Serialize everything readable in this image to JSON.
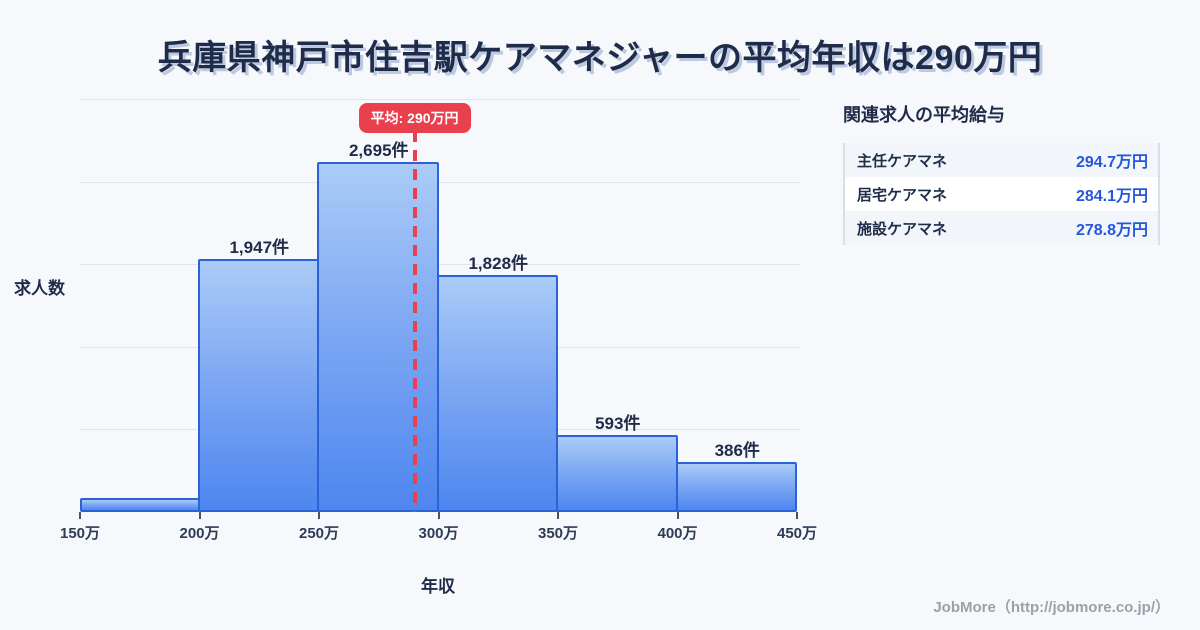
{
  "title": "兵庫県神戸市住吉駅ケアマネジャーの平均年収は290万円",
  "chart_data": {
    "type": "bar",
    "subtype": "histogram",
    "title": "兵庫県神戸市住吉駅ケアマネジャーの平均年収は290万円",
    "xlabel": "年収",
    "ylabel": "求人数",
    "x_ticks": [
      "150万",
      "200万",
      "250万",
      "300万",
      "350万",
      "400万",
      "450万"
    ],
    "x_range_man_yen": [
      150,
      450
    ],
    "bin_width_man_yen": 50,
    "bars": [
      {
        "range": "150万-200万",
        "value": 110,
        "label": "",
        "estimated": true
      },
      {
        "range": "200万-250万",
        "value": 1947,
        "label": "1,947件"
      },
      {
        "range": "250万-300万",
        "value": 2695,
        "label": "2,695件"
      },
      {
        "range": "300万-350万",
        "value": 1828,
        "label": "1,828件"
      },
      {
        "range": "350万-400万",
        "value": 593,
        "label": "593件"
      },
      {
        "range": "400万-450万",
        "value": 386,
        "label": "386件"
      }
    ],
    "average_line": {
      "value_man_yen": 290,
      "label": "平均: 290万円"
    },
    "ylim": [
      0,
      3180
    ],
    "grid": true,
    "gridline_divisions": 5,
    "legend": "none"
  },
  "side_panel": {
    "heading": "関連求人の平均給与",
    "rows": [
      {
        "label": "主任ケアマネ",
        "value": "294.7万円"
      },
      {
        "label": "居宅ケアマネ",
        "value": "284.1万円"
      },
      {
        "label": "施設ケアマネ",
        "value": "278.8万円"
      }
    ]
  },
  "footer": {
    "credit": "JobMore（http://jobmore.co.jp/）"
  },
  "colors": {
    "background": "#f7f8fb",
    "title_text": "#1e2c4a",
    "bar_border": "#2a63d8",
    "bar_gradient_top": "#abccf7",
    "bar_gradient_bottom": "#4e86f0",
    "average_accent": "#e8414d",
    "value_blue": "#2457e0",
    "gridline": "#dfe4ef",
    "footer_gray": "#9aa1ab"
  }
}
